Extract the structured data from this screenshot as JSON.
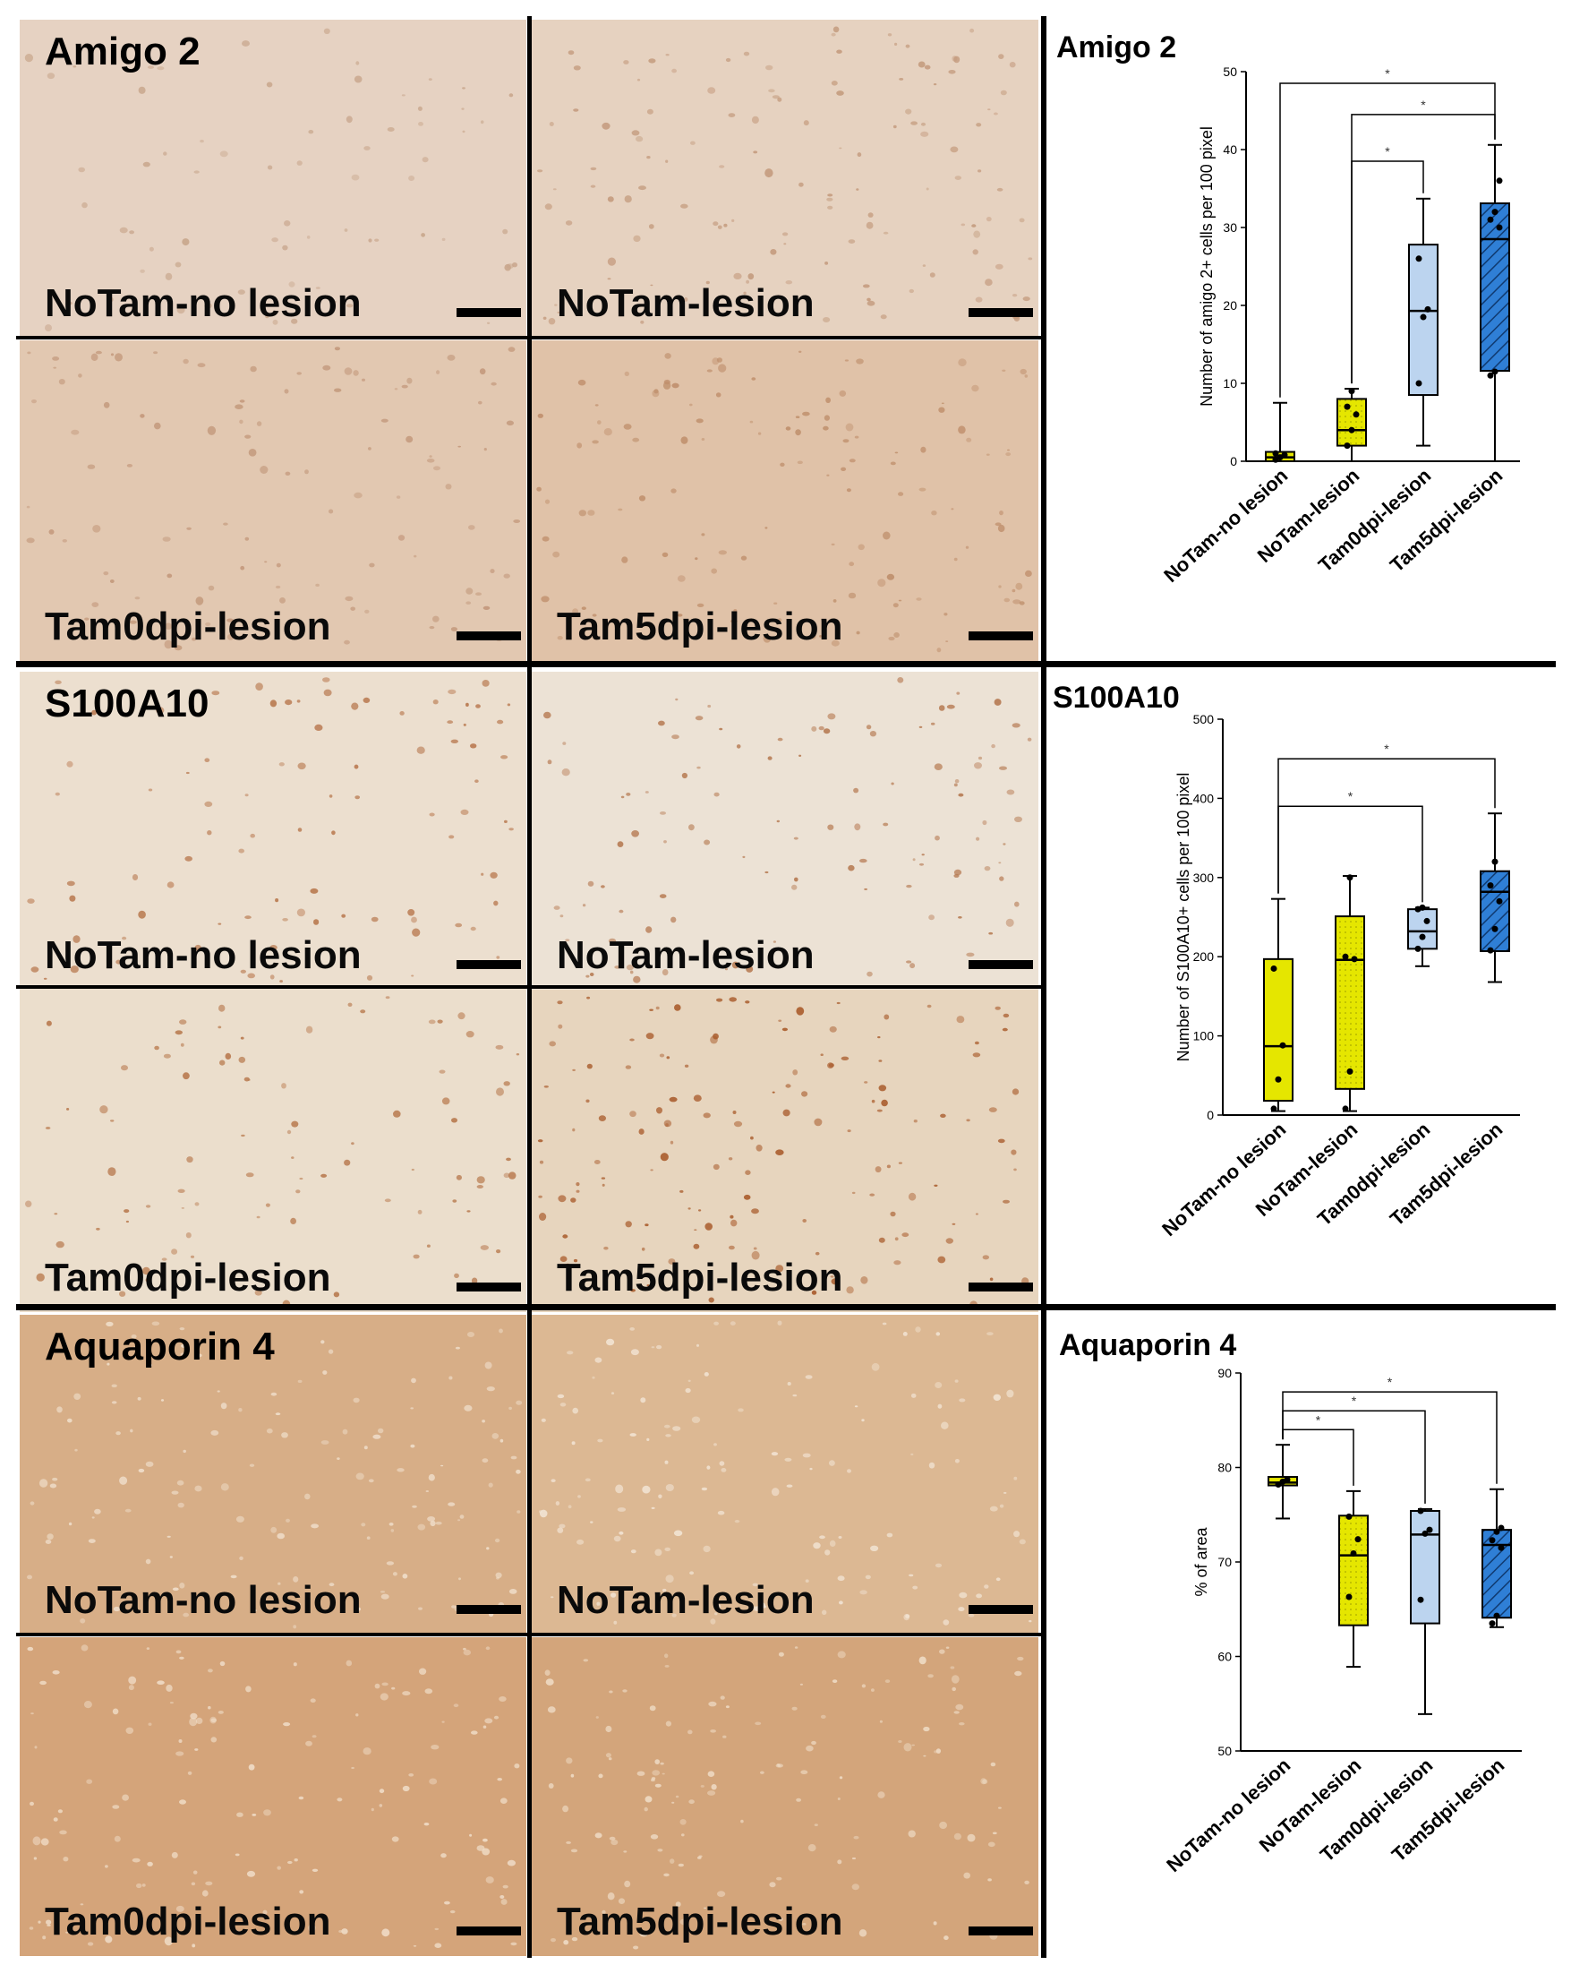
{
  "panels": [
    {
      "title": "Amigo 2",
      "tiles": [
        {
          "label": "NoTam-no lesion",
          "base": "#e6d2c2",
          "spot": "#c8a68c",
          "density": 70
        },
        {
          "label": "NoTam-lesion",
          "base": "#e6d2c0",
          "spot": "#c39a7c",
          "density": 130
        },
        {
          "label": "Tam0dpi-lesion",
          "base": "#e2c8b1",
          "spot": "#c2977a",
          "density": 110
        },
        {
          "label": "Tam5dpi-lesion",
          "base": "#e0c2a8",
          "spot": "#bf8f6c",
          "density": 130
        }
      ]
    },
    {
      "title": "S100A10",
      "tiles": [
        {
          "label": "NoTam-no lesion",
          "base": "#ecdfcf",
          "spot": "#b8784e",
          "density": 90
        },
        {
          "label": "NoTam-lesion",
          "base": "#ece2d5",
          "spot": "#b67a52",
          "density": 110
        },
        {
          "label": "Tam0dpi-lesion",
          "base": "#ebdecc",
          "spot": "#b7784c",
          "density": 90
        },
        {
          "label": "Tam5dpi-lesion",
          "base": "#e7d5be",
          "spot": "#a85a2a",
          "density": 150
        }
      ]
    },
    {
      "title": "Aquaporin 4",
      "tiles": [
        {
          "label": "NoTam-no lesion",
          "base": "#d7ae87",
          "spot": "#f0dfcc",
          "density": 140
        },
        {
          "label": "NoTam-lesion",
          "base": "#dcb893",
          "spot": "#f2e4d4",
          "density": 140
        },
        {
          "label": "Tam0dpi-lesion",
          "base": "#d4a47a",
          "spot": "#f0ddc8",
          "density": 140
        },
        {
          "label": "Tam5dpi-lesion",
          "base": "#d3a57b",
          "spot": "#efdcc6",
          "density": 140
        }
      ]
    }
  ],
  "colors": {
    "NoTam-no lesion": "#e5e600",
    "NoTam-lesion": "#e5e600",
    "Tam0dpi-lesion": "#bcd4ef",
    "Tam5dpi-lesion": "#2f7fd6",
    "divider": "#000000"
  },
  "chart_data": [
    {
      "type": "box",
      "title": "Amigo 2",
      "ylabel": "Number of amigo 2+ cells per 100 pixel",
      "ylim": [
        0,
        50
      ],
      "yticks": [
        0,
        10,
        20,
        30,
        40,
        50
      ],
      "categories": [
        "NoTam-no lesion",
        "NoTam-lesion",
        "Tam0dpi-lesion",
        "Tam5dpi-lesion"
      ],
      "boxes": [
        {
          "min": 0,
          "q1": 0,
          "median": 0.5,
          "q3": 1.2,
          "max": 7.5,
          "points": [
            0.2,
            0.5,
            0.8,
            1.0
          ]
        },
        {
          "min": 0,
          "q1": 2,
          "median": 4,
          "q3": 8,
          "max": 9.3,
          "points": [
            2.0,
            4.0,
            6.0,
            7.0,
            9.0
          ]
        },
        {
          "min": 2,
          "q1": 8.5,
          "median": 19.3,
          "q3": 27.8,
          "max": 33.7,
          "points": [
            10,
            18.5,
            19.5,
            26
          ]
        },
        {
          "min": 0,
          "q1": 11.6,
          "median": 28.5,
          "q3": 33.1,
          "max": 40.6,
          "points": [
            11,
            11.5,
            30,
            31,
            32,
            36
          ]
        }
      ],
      "significance": [
        {
          "from": 0,
          "to": 3,
          "label": "*",
          "y": 48.5
        },
        {
          "from": 1,
          "to": 2,
          "label": "*",
          "y": 38.5
        },
        {
          "from": 1,
          "to": 3,
          "label": "*",
          "y": 44.5
        }
      ]
    },
    {
      "type": "box",
      "title": "S100A10",
      "ylabel": "Number of S100A10+ cells per 100 pixel",
      "ylim": [
        0,
        500
      ],
      "yticks": [
        0,
        100,
        200,
        300,
        400,
        500
      ],
      "categories": [
        "NoTam-no lesion",
        "NoTam-lesion",
        "Tam0dpi-lesion",
        "Tam5dpi-lesion"
      ],
      "boxes": [
        {
          "min": 5,
          "q1": 18,
          "median": 87,
          "q3": 197,
          "max": 273,
          "points": [
            8,
            45,
            88,
            185
          ]
        },
        {
          "min": 5,
          "q1": 33,
          "median": 196,
          "q3": 251,
          "max": 302,
          "points": [
            8,
            55,
            197,
            200,
            300
          ]
        },
        {
          "min": 188,
          "q1": 210,
          "median": 232,
          "q3": 260,
          "max": 262,
          "points": [
            210,
            225,
            245,
            260,
            262
          ]
        },
        {
          "min": 168,
          "q1": 207,
          "median": 282,
          "q3": 308,
          "max": 381,
          "points": [
            208,
            235,
            270,
            290,
            320
          ]
        }
      ],
      "significance": [
        {
          "from": 0,
          "to": 3,
          "label": "*",
          "y": 450
        },
        {
          "from": 0,
          "to": 2,
          "label": "*",
          "y": 390
        }
      ]
    },
    {
      "type": "box",
      "title": "Aquaporin 4",
      "ylabel": "% of area",
      "ylim": [
        50,
        90
      ],
      "yticks": [
        50,
        60,
        70,
        80,
        90
      ],
      "categories": [
        "NoTam-no lesion",
        "NoTam-lesion",
        "Tam0dpi-lesion",
        "Tam5dpi-lesion"
      ],
      "boxes": [
        {
          "min": 74.6,
          "q1": 78.1,
          "median": 78.4,
          "q3": 79.0,
          "max": 82.4,
          "points": [
            78.2,
            78.5,
            78.7
          ]
        },
        {
          "min": 58.9,
          "q1": 63.3,
          "median": 70.7,
          "q3": 74.9,
          "max": 77.5,
          "points": [
            66.3,
            70.9,
            72.4,
            74.8
          ]
        },
        {
          "min": 53.9,
          "q1": 63.5,
          "median": 72.9,
          "q3": 75.4,
          "max": 75.6,
          "points": [
            66.0,
            73.0,
            73.4,
            75.4
          ]
        },
        {
          "min": 63.1,
          "q1": 64.1,
          "median": 71.8,
          "q3": 73.4,
          "max": 77.7,
          "points": [
            63.5,
            64.3,
            71.5,
            72.3,
            73.2,
            73.6
          ]
        }
      ],
      "significance": [
        {
          "from": 0,
          "to": 3,
          "label": "*",
          "y": 88.0
        },
        {
          "from": 0,
          "to": 2,
          "label": "*",
          "y": 86.0
        },
        {
          "from": 0,
          "to": 1,
          "label": "*",
          "y": 84.0
        }
      ]
    }
  ]
}
